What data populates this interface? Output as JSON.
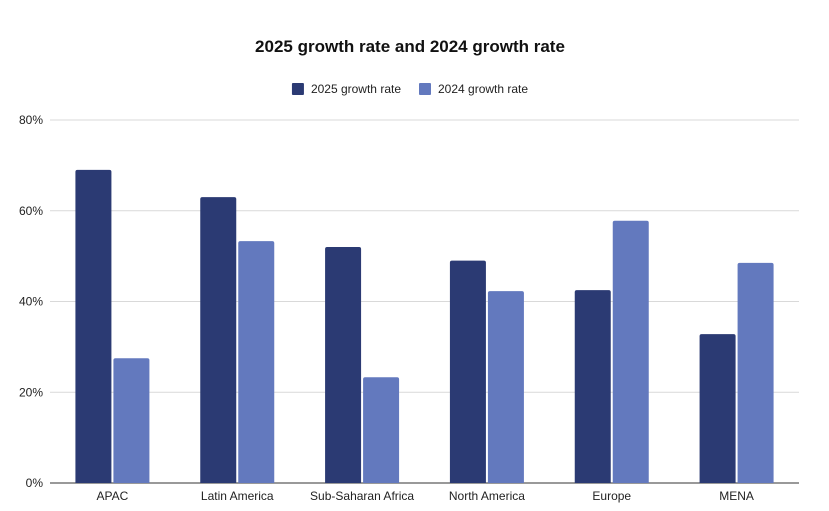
{
  "chart_data": {
    "type": "bar",
    "title": "2025 growth rate and 2024 growth rate",
    "xlabel": "",
    "ylabel": "",
    "categories": [
      "APAC",
      "Latin America",
      "Sub-Saharan Africa",
      "North America",
      "Europe",
      "MENA"
    ],
    "series": [
      {
        "name": "2025 growth rate",
        "color": "#2b3a73",
        "values": [
          69,
          63,
          52,
          49,
          42.5,
          32.8
        ]
      },
      {
        "name": "2024 growth rate",
        "color": "#6379be",
        "values": [
          27.5,
          53.3,
          23.3,
          42.3,
          57.8,
          48.5
        ]
      }
    ],
    "ylim": [
      0,
      80
    ],
    "yticks": [
      0,
      20,
      40,
      60,
      80
    ],
    "ytick_labels": [
      "0%",
      "20%",
      "40%",
      "60%",
      "80%"
    ],
    "grid": true,
    "legend_position": "top-center"
  }
}
